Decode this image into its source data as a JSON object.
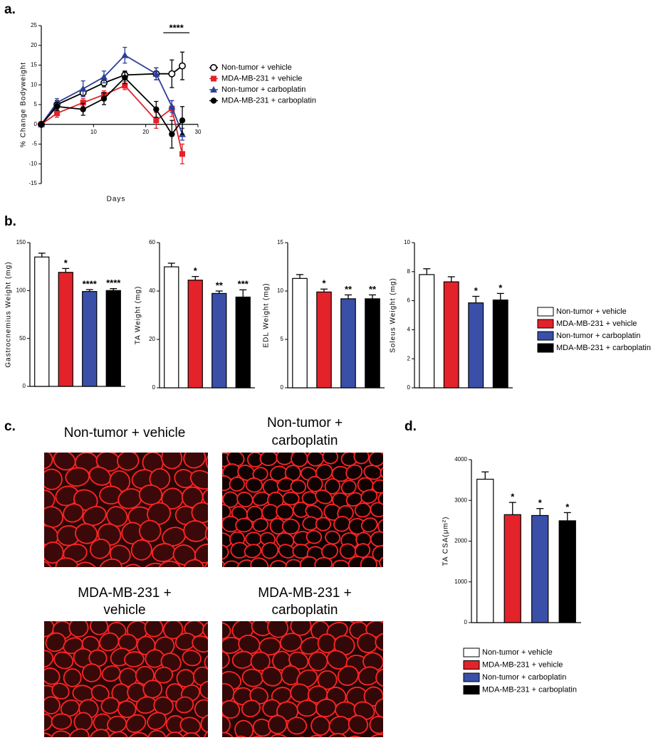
{
  "panel_labels": [
    "a.",
    "b.",
    "c.",
    "d."
  ],
  "chart_data": [
    {
      "type": "line",
      "xlabel": "Days",
      "ylabel": "% Change Bodyweight",
      "x": [
        0,
        3,
        8,
        12,
        16,
        22,
        25,
        27
      ],
      "xlim": [
        0,
        30
      ],
      "xticks": [
        10,
        20,
        30
      ],
      "ylim": [
        -15,
        25
      ],
      "yticks": [
        -15,
        -10,
        -5,
        0,
        5,
        10,
        15,
        20,
        25
      ],
      "annotation": "****",
      "series": [
        {
          "name": "Non-tumor + vehicle",
          "color": "#000000",
          "marker": "open-circle",
          "values": [
            0,
            5,
            8,
            10.5,
            12.5,
            12.8,
            12.8,
            14.8
          ],
          "errors": [
            0,
            1,
            1,
            1,
            1,
            1.5,
            3.5,
            3.5
          ]
        },
        {
          "name": "MDA-MB-231 + vehicle",
          "color": "#e3222a",
          "marker": "square",
          "values": [
            0,
            2.8,
            5.5,
            7.5,
            9.8,
            1,
            4,
            -7.5
          ],
          "errors": [
            0,
            1,
            1,
            1,
            1,
            2,
            2,
            2.5
          ]
        },
        {
          "name": "Non-tumor + carboplatin",
          "color": "#2c3f98",
          "marker": "triangle",
          "values": [
            0,
            5.5,
            9,
            12,
            17.5,
            12.8,
            4.5,
            -2.5
          ],
          "errors": [
            0,
            1,
            2,
            1.5,
            2,
            1.5,
            1.5,
            1.5
          ]
        },
        {
          "name": "MDA-MB-231 + carboplatin",
          "color": "#000000",
          "marker": "circle",
          "values": [
            0,
            4.5,
            3.8,
            6.5,
            11.8,
            3.8,
            -2.5,
            1
          ],
          "errors": [
            0,
            1,
            1.5,
            1.5,
            1.5,
            2,
            3.5,
            3.5
          ]
        }
      ]
    },
    {
      "type": "bar",
      "ylabel": "Gastrocnemius Weight (mg)",
      "ylim": [
        0,
        150
      ],
      "yticks": [
        0,
        50,
        100,
        150
      ],
      "values": [
        135,
        119,
        99,
        100
      ],
      "errors": [
        4,
        4,
        2,
        2
      ],
      "significance": [
        null,
        "*",
        "****",
        "****"
      ],
      "colors": [
        "#ffffff",
        "#e3222a",
        "#3a50a8",
        "#000000"
      ]
    },
    {
      "type": "bar",
      "ylabel": "TA Weight (mg)",
      "ylim": [
        0,
        60
      ],
      "yticks": [
        0,
        20,
        40,
        60
      ],
      "values": [
        50,
        44.5,
        39,
        37.5
      ],
      "errors": [
        1.5,
        1.5,
        1,
        3
      ],
      "significance": [
        null,
        "*",
        "**",
        "***"
      ],
      "colors": [
        "#ffffff",
        "#e3222a",
        "#3a50a8",
        "#000000"
      ]
    },
    {
      "type": "bar",
      "ylabel": "EDL Weight (mg)",
      "ylim": [
        0,
        15
      ],
      "yticks": [
        0,
        5,
        10,
        15
      ],
      "values": [
        11.3,
        9.9,
        9.2,
        9.2
      ],
      "errors": [
        0.4,
        0.3,
        0.4,
        0.4
      ],
      "significance": [
        null,
        "*",
        "**",
        "**"
      ],
      "colors": [
        "#ffffff",
        "#e3222a",
        "#3a50a8",
        "#000000"
      ]
    },
    {
      "type": "bar",
      "ylabel": "Soleus Weight (mg)",
      "ylim": [
        0,
        10
      ],
      "yticks": [
        0,
        2,
        4,
        6,
        8,
        10
      ],
      "values": [
        7.8,
        7.3,
        5.85,
        6.05
      ],
      "errors": [
        0.4,
        0.35,
        0.45,
        0.45
      ],
      "significance": [
        null,
        null,
        "*",
        "*"
      ],
      "colors": [
        "#ffffff",
        "#e3222a",
        "#3a50a8",
        "#000000"
      ],
      "legend": [
        "Non-tumor + vehicle",
        "MDA-MB-231 + vehicle",
        "Non-tumor + carboplatin",
        "MDA-MB-231 + carboplatin"
      ]
    },
    {
      "type": "bar",
      "ylabel": "TA CSA(μm²)",
      "ylim": [
        0,
        4000
      ],
      "yticks": [
        0,
        1000,
        2000,
        3000,
        4000
      ],
      "values": [
        3520,
        2650,
        2630,
        2500
      ],
      "errors": [
        180,
        300,
        170,
        200
      ],
      "significance": [
        null,
        "*",
        "*",
        "*"
      ],
      "colors": [
        "#ffffff",
        "#e3222a",
        "#3a50a8",
        "#000000"
      ],
      "legend": [
        "Non-tumor + vehicle",
        "MDA-MB-231 + vehicle",
        "Non-tumor + carboplatin",
        "MDA-MB-231 + carboplatin"
      ]
    }
  ],
  "micrographs": [
    {
      "label_lines": [
        "Non-tumor + vehicle"
      ]
    },
    {
      "label_lines": [
        "Non-tumor +",
        "carboplatin"
      ]
    },
    {
      "label_lines": [
        "MDA-MB-231 +",
        "vehicle"
      ]
    },
    {
      "label_lines": [
        "MDA-MB-231 +",
        "carboplatin"
      ]
    }
  ]
}
